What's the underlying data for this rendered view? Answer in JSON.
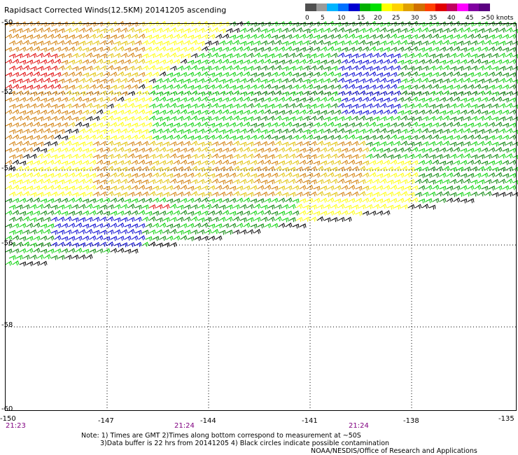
{
  "title": "Rapidsact Corrected Winds(12.5KM) 20141205 ascending",
  "colorbar": {
    "colors": [
      "#505050",
      "#9a9a9a",
      "#00b4ff",
      "#0070ff",
      "#0000d0",
      "#00b000",
      "#00e000",
      "#ffff00",
      "#ffd200",
      "#e0a000",
      "#d07000",
      "#ff4000",
      "#e00000",
      "#c00060",
      "#ff00ff",
      "#8000a0",
      "#5a0080"
    ],
    "labels": [
      "0",
      "5",
      "10",
      "15",
      "20",
      "25",
      "30",
      "35",
      "40",
      "45",
      ">50 knots"
    ]
  },
  "axes": {
    "lat_labels": [
      "-50",
      "-52",
      "-54",
      "-56",
      "-58",
      "-60"
    ],
    "lon_labels": [
      "-150",
      "-147",
      "-144",
      "-141",
      "-138",
      "-135"
    ]
  },
  "times": [
    "21:23",
    "21:24",
    "21:24"
  ],
  "notes": {
    "line1": "Note: 1) Times are GMT 2)Times along bottom correspond to measurement at ~50S",
    "line2": "3)Data buffer is 22 hrs from 20141205 4) Black circles indicate possible contamination",
    "credit": "NOAA/NESDIS/Office of Research and Applications"
  },
  "wind_colors": {
    "edge": "#000000",
    "blue": "#0000d0",
    "dark_green": "#008000",
    "green": "#00d000",
    "yellow": "#ffff00",
    "gold": "#e0c000",
    "orange": "#d07a00",
    "red": "#e00000",
    "magenta": "#ff00ff"
  }
}
